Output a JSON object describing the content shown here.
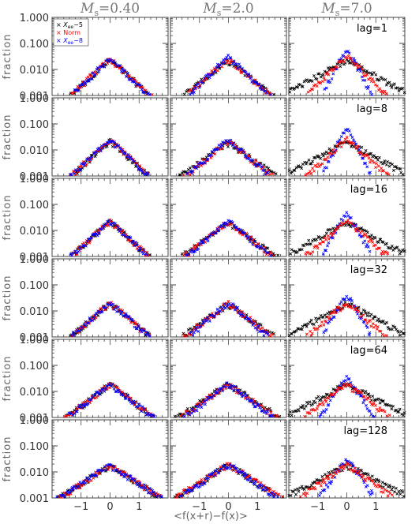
{
  "chart_data": {
    "type": "scatter",
    "layout": "6 rows x 3 columns small multiples",
    "column_titles": [
      {
        "symbol": "M",
        "subscript": "s",
        "value": "=0.40"
      },
      {
        "symbol": "M",
        "subscript": "s",
        "value": "=2.0"
      },
      {
        "symbol": "M",
        "subscript": "s",
        "value": "=7.0"
      }
    ],
    "row_labels": [
      "lag=1",
      "lag=8",
      "lag=16",
      "lag=32",
      "lag=64",
      "lag=128"
    ],
    "ylabel": "fraction",
    "xlabel": "<f(x+r)−f(x)>",
    "yscale": "log",
    "ylim": [
      0.001,
      1.0
    ],
    "xlim": [
      -2,
      2
    ],
    "yticks": [
      "0.001",
      "0.010",
      "0.100",
      "1.000"
    ],
    "xticks": [
      "−1",
      "0",
      "1"
    ],
    "legend": {
      "placement": "top-left of first panel",
      "entries": [
        {
          "symbol": "×",
          "base": "X",
          "subscript": "ee",
          "suffix": "−5",
          "color": "#000000"
        },
        {
          "symbol": "×",
          "text": "Norm",
          "color": "#ff0000"
        },
        {
          "symbol": "×",
          "base": "X",
          "subscript": "ee",
          "suffix": "−8",
          "color": "#0000ff"
        }
      ]
    },
    "series_colors": [
      "#000000",
      "#ff0000",
      "#0000ff"
    ],
    "panels": [
      [
        {
          "peak": [
            0.022,
            0.023,
            0.024
          ],
          "width": [
            0.85,
            0.85,
            0.82
          ]
        },
        {
          "peak": [
            0.02,
            0.024,
            0.029
          ],
          "width": [
            1.0,
            0.9,
            0.8
          ]
        },
        {
          "peak": [
            0.022,
            0.03,
            0.06
          ],
          "width": [
            1.4,
            0.8,
            0.4
          ]
        }
      ],
      [
        {
          "peak": [
            0.021,
            0.022,
            0.022
          ],
          "width": [
            0.85,
            0.85,
            0.85
          ]
        },
        {
          "peak": [
            0.018,
            0.021,
            0.025
          ],
          "width": [
            1.1,
            0.95,
            0.85
          ]
        },
        {
          "peak": [
            0.02,
            0.025,
            0.065
          ],
          "width": [
            1.4,
            0.85,
            0.4
          ]
        }
      ],
      [
        {
          "peak": [
            0.021,
            0.021,
            0.021
          ],
          "width": [
            0.85,
            0.85,
            0.85
          ]
        },
        {
          "peak": [
            0.018,
            0.02,
            0.022
          ],
          "width": [
            1.1,
            1.0,
            0.9
          ]
        },
        {
          "peak": [
            0.02,
            0.022,
            0.045
          ],
          "width": [
            1.4,
            0.9,
            0.45
          ]
        }
      ],
      [
        {
          "peak": [
            0.019,
            0.019,
            0.019
          ],
          "width": [
            0.9,
            0.9,
            0.9
          ]
        },
        {
          "peak": [
            0.017,
            0.019,
            0.02
          ],
          "width": [
            1.1,
            1.0,
            0.9
          ]
        },
        {
          "peak": [
            0.019,
            0.02,
            0.04
          ],
          "width": [
            1.4,
            0.9,
            0.45
          ]
        }
      ],
      [
        {
          "peak": [
            0.018,
            0.018,
            0.018
          ],
          "width": [
            1.0,
            1.0,
            1.0
          ]
        },
        {
          "peak": [
            0.018,
            0.018,
            0.019
          ],
          "width": [
            1.2,
            1.1,
            1.0
          ]
        },
        {
          "peak": [
            0.018,
            0.018,
            0.035
          ],
          "width": [
            1.5,
            1.0,
            0.5
          ]
        }
      ],
      [
        {
          "peak": [
            0.017,
            0.017,
            0.017
          ],
          "width": [
            1.2,
            1.2,
            1.2
          ]
        },
        {
          "peak": [
            0.018,
            0.019,
            0.019
          ],
          "width": [
            1.2,
            1.2,
            1.1
          ]
        },
        {
          "peak": [
            0.017,
            0.018,
            0.03
          ],
          "width": [
            1.5,
            1.1,
            0.55
          ]
        }
      ]
    ]
  }
}
